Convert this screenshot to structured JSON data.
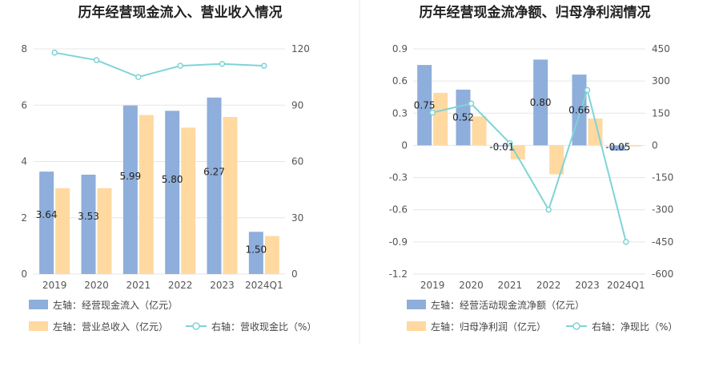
{
  "colors": {
    "bar_primary": "#8eaedb",
    "bar_secondary": "#ffd9a0",
    "line": "#7fd4d6",
    "grid": "#e6e6e6",
    "divider": "#eeeeee",
    "text": "#222222",
    "axis_text": "#555555"
  },
  "chart_data": [
    {
      "type": "bar",
      "title": "历年经营现金流入、营业收入情况",
      "categories": [
        "2019",
        "2020",
        "2021",
        "2022",
        "2023",
        "2024Q1"
      ],
      "left_axis": {
        "ticks": [
          "0",
          "2",
          "4",
          "6",
          "8"
        ],
        "ylim": [
          0,
          8
        ]
      },
      "right_axis": {
        "ticks": [
          "0",
          "30",
          "60",
          "90",
          "120"
        ],
        "ylim": [
          0,
          120
        ]
      },
      "series": [
        {
          "name": "左轴：经营现金流入（亿元）",
          "kind": "bar",
          "axis": "left",
          "values": [
            3.64,
            3.53,
            5.99,
            5.8,
            6.27,
            1.5
          ],
          "labels": [
            "3.64",
            "3.53",
            "5.99",
            "5.80",
            "6.27",
            "1.50"
          ]
        },
        {
          "name": "左轴：营业总收入（亿元）",
          "kind": "bar",
          "axis": "left",
          "values": [
            3.05,
            3.05,
            5.65,
            5.2,
            5.58,
            1.35
          ]
        },
        {
          "name": "右轴：营收现金比（%）",
          "kind": "line",
          "axis": "right",
          "values": [
            118,
            114,
            105,
            111,
            112,
            111
          ]
        }
      ]
    },
    {
      "type": "bar",
      "title": "历年经营现金流净额、归母净利润情况",
      "categories": [
        "2019",
        "2020",
        "2021",
        "2022",
        "2023",
        "2024Q1"
      ],
      "left_axis": {
        "ticks": [
          "-1.2",
          "-0.9",
          "-0.6",
          "-0.3",
          "0",
          "0.3",
          "0.6",
          "0.9"
        ],
        "ylim": [
          -1.2,
          0.9
        ]
      },
      "right_axis": {
        "ticks": [
          "-600",
          "-450",
          "-300",
          "-150",
          "0",
          "150",
          "300",
          "450"
        ],
        "ylim": [
          -600,
          450
        ]
      },
      "series": [
        {
          "name": "左轴：经营活动现金流净额（亿元）",
          "kind": "bar",
          "axis": "left",
          "values": [
            0.75,
            0.52,
            -0.01,
            0.8,
            0.66,
            -0.05
          ],
          "labels": [
            "0.75",
            "0.52",
            "-0.01",
            "0.80",
            "0.66",
            "-0.05"
          ]
        },
        {
          "name": "左轴：归母净利润（亿元）",
          "kind": "bar",
          "axis": "left",
          "values": [
            0.49,
            0.27,
            -0.13,
            -0.27,
            0.25,
            -0.01
          ]
        },
        {
          "name": "右轴：净现比（%）",
          "kind": "line",
          "axis": "right",
          "values": [
            153,
            195,
            10,
            -300,
            258,
            -450
          ]
        }
      ]
    }
  ]
}
